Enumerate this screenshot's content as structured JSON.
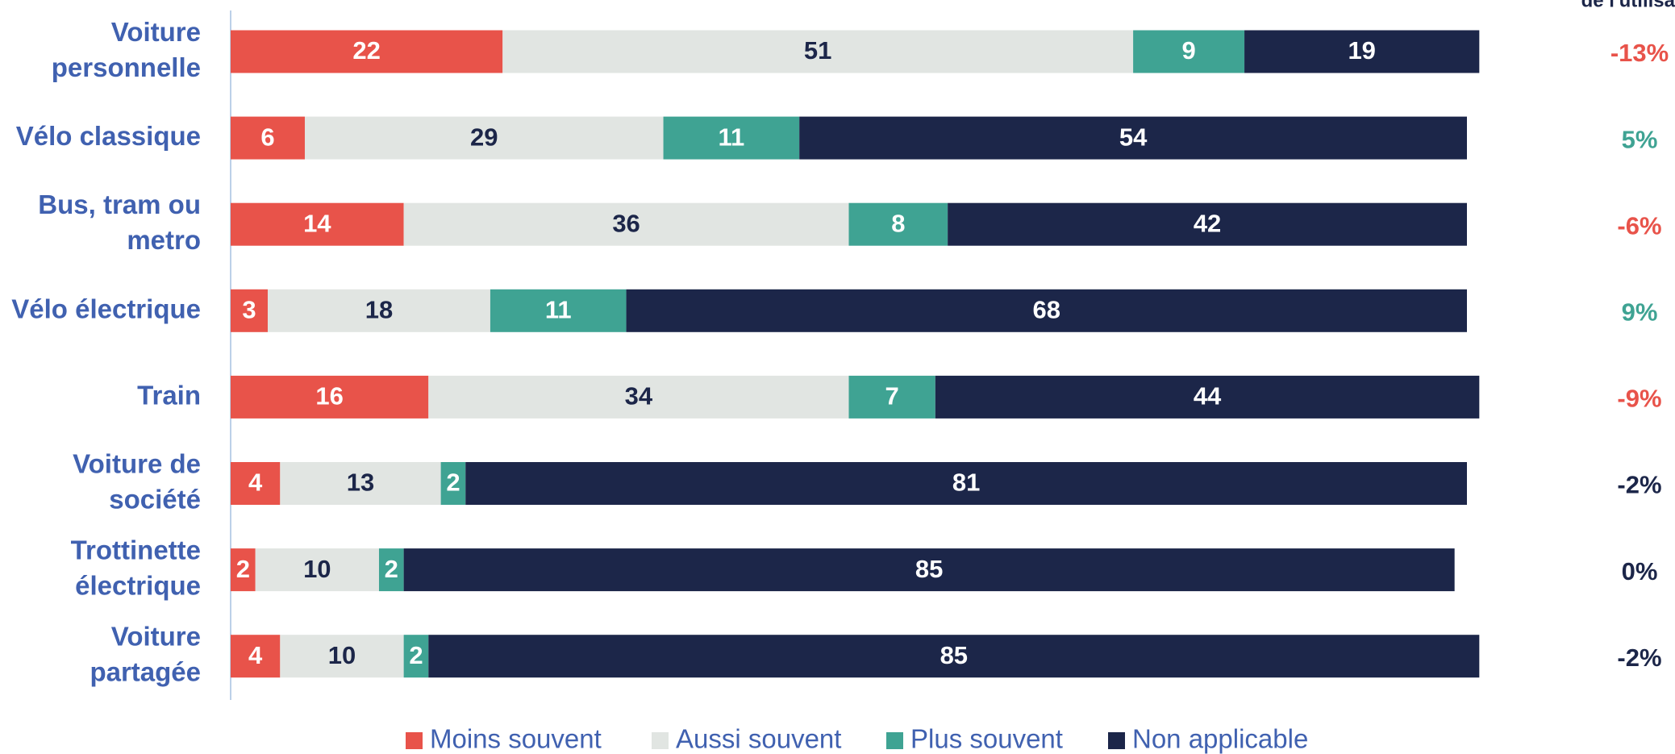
{
  "chart_data": {
    "type": "stacked-bar-horizontal",
    "categories": [
      [
        "Voiture",
        "personnelle"
      ],
      [
        "Vélo classique"
      ],
      [
        "Bus, tram ou",
        "metro"
      ],
      [
        "Vélo électrique"
      ],
      [
        "Train"
      ],
      [
        "Voiture de",
        "société"
      ],
      [
        "Trottinette",
        "électrique"
      ],
      [
        "Voiture",
        "partagée"
      ]
    ],
    "series": [
      {
        "name": "Moins souvent",
        "color": "#e8534a",
        "label_color": "#ffffff",
        "values": [
          22,
          6,
          14,
          3,
          16,
          4,
          2,
          4
        ]
      },
      {
        "name": "Aussi souvent",
        "color": "#e1e5e2",
        "label_color": "#1c2649",
        "values": [
          51,
          29,
          36,
          18,
          34,
          13,
          10,
          10
        ]
      },
      {
        "name": "Plus souvent",
        "color": "#3fa393",
        "label_color": "#ffffff",
        "values": [
          9,
          11,
          8,
          11,
          7,
          2,
          2,
          2
        ]
      },
      {
        "name": "Non applicable",
        "color": "#1c2649",
        "label_color": "#ffffff",
        "values": [
          19,
          54,
          42,
          68,
          44,
          81,
          85,
          85
        ]
      }
    ],
    "change": {
      "header": "de l'utilisa",
      "values": [
        -13,
        5,
        -6,
        9,
        -9,
        -2,
        0,
        -2
      ],
      "value_labels": [
        "-13%",
        "5%",
        "-6%",
        "9%",
        "-9%",
        "-2%",
        "0%",
        "-2%"
      ],
      "colors": [
        "#e8534a",
        "#3fa393",
        "#e8534a",
        "#3fa393",
        "#e8534a",
        "#1c2649",
        "#1c2649",
        "#1c2649"
      ]
    }
  }
}
